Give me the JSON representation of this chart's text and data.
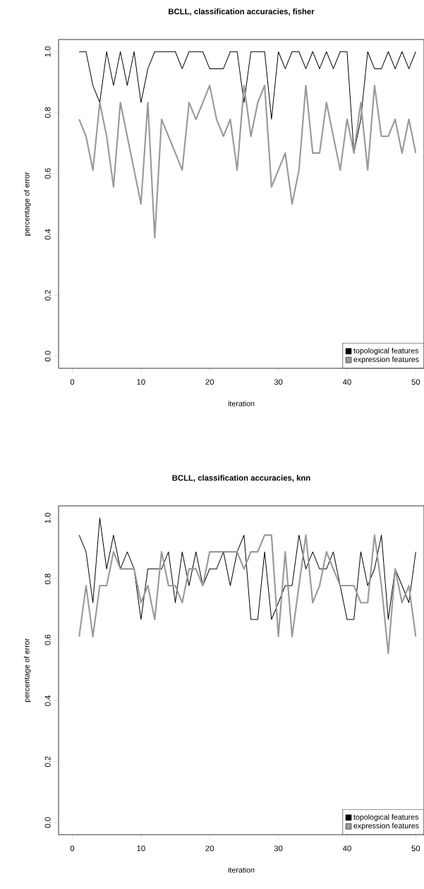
{
  "chart_data": [
    {
      "type": "line",
      "title": "BCLL, classification accuracies, fisher",
      "xlabel": "iteration",
      "ylabel": "percentage of error",
      "x": [
        1,
        2,
        3,
        4,
        5,
        6,
        7,
        8,
        9,
        10,
        11,
        12,
        13,
        14,
        15,
        16,
        17,
        18,
        19,
        20,
        21,
        22,
        23,
        24,
        25,
        26,
        27,
        28,
        29,
        30,
        31,
        32,
        33,
        34,
        35,
        36,
        37,
        38,
        39,
        40,
        41,
        42,
        43,
        44,
        45,
        46,
        47,
        48,
        49,
        50
      ],
      "series": [
        {
          "name": "topological features",
          "color": "#000000",
          "values": [
            1.0,
            1.0,
            0.889,
            0.833,
            1.0,
            0.889,
            1.0,
            0.889,
            1.0,
            0.833,
            0.944,
            1.0,
            1.0,
            1.0,
            1.0,
            0.944,
            1.0,
            1.0,
            1.0,
            0.944,
            0.944,
            0.944,
            1.0,
            1.0,
            0.833,
            1.0,
            1.0,
            1.0,
            0.778,
            1.0,
            0.944,
            1.0,
            1.0,
            0.944,
            1.0,
            0.944,
            1.0,
            0.944,
            1.0,
            1.0,
            0.667,
            0.778,
            1.0,
            0.944,
            0.944,
            1.0,
            0.944,
            1.0,
            0.944,
            1.0
          ]
        },
        {
          "name": "expression features",
          "color": "#999999",
          "values": [
            0.778,
            0.722,
            0.611,
            0.833,
            0.722,
            0.556,
            0.833,
            0.722,
            0.611,
            0.5,
            0.833,
            0.389,
            0.778,
            0.722,
            0.667,
            0.611,
            0.833,
            0.778,
            0.833,
            0.889,
            0.778,
            0.722,
            0.778,
            0.611,
            0.889,
            0.722,
            0.833,
            0.889,
            0.556,
            0.611,
            0.667,
            0.5,
            0.611,
            0.889,
            0.667,
            0.667,
            0.833,
            0.722,
            0.611,
            0.778,
            0.667,
            0.833,
            0.611,
            0.889,
            0.722,
            0.722,
            0.778,
            0.667,
            0.778,
            0.667
          ]
        }
      ],
      "xlim": [
        -2,
        51.2
      ],
      "ylim": [
        -0.04,
        1.04
      ],
      "xticks": [
        0,
        10,
        20,
        30,
        40,
        50
      ],
      "yticks": [
        {
          "value": 0,
          "label": "0.0"
        },
        {
          "value": 0.2,
          "label": "0.2"
        },
        {
          "value": 0.4,
          "label": "0.4"
        },
        {
          "value": 0.6,
          "label": "0.6"
        },
        {
          "value": 0.8,
          "label": "0.8"
        },
        {
          "value": 1,
          "label": "1.0"
        }
      ],
      "legend": "bottom right"
    },
    {
      "type": "line",
      "title": "BCLL, classification accuracies, knn",
      "xlabel": "iteration",
      "ylabel": "percentage of error",
      "x": [
        1,
        2,
        3,
        4,
        5,
        6,
        7,
        8,
        9,
        10,
        11,
        12,
        13,
        14,
        15,
        16,
        17,
        18,
        19,
        20,
        21,
        22,
        23,
        24,
        25,
        26,
        27,
        28,
        29,
        30,
        31,
        32,
        33,
        34,
        35,
        36,
        37,
        38,
        39,
        40,
        41,
        42,
        43,
        44,
        45,
        46,
        47,
        48,
        49,
        50
      ],
      "series": [
        {
          "name": "topological features",
          "color": "#000000",
          "values": [
            0.944,
            0.889,
            0.722,
            1.0,
            0.833,
            0.944,
            0.833,
            0.889,
            0.833,
            0.667,
            0.833,
            0.833,
            0.833,
            0.889,
            0.722,
            0.889,
            0.778,
            0.889,
            0.778,
            0.833,
            0.833,
            0.889,
            0.778,
            0.889,
            0.944,
            0.667,
            0.667,
            0.889,
            0.667,
            0.722,
            0.778,
            0.778,
            0.944,
            0.833,
            0.889,
            0.833,
            0.833,
            0.889,
            0.778,
            0.667,
            0.667,
            0.889,
            0.778,
            0.833,
            0.944,
            0.667,
            0.833,
            0.778,
            0.722,
            0.889
          ]
        },
        {
          "name": "expression features",
          "color": "#999999",
          "values": [
            0.611,
            0.778,
            0.611,
            0.778,
            0.778,
            0.889,
            0.833,
            0.833,
            0.833,
            0.722,
            0.778,
            0.667,
            0.889,
            0.778,
            0.778,
            0.722,
            0.833,
            0.833,
            0.778,
            0.889,
            0.889,
            0.889,
            0.889,
            0.889,
            0.833,
            0.889,
            0.889,
            0.944,
            0.944,
            0.611,
            0.889,
            0.611,
            0.778,
            0.944,
            0.722,
            0.778,
            0.889,
            0.833,
            0.778,
            0.778,
            0.778,
            0.722,
            0.722,
            0.944,
            0.778,
            0.556,
            0.833,
            0.722,
            0.778,
            0.611
          ]
        }
      ],
      "xlim": [
        -2,
        51.2
      ],
      "ylim": [
        -0.04,
        1.04
      ],
      "xticks": [
        0,
        10,
        20,
        30,
        40,
        50
      ],
      "yticks": [
        {
          "value": 0,
          "label": "0.0"
        },
        {
          "value": 0.2,
          "label": "0.2"
        },
        {
          "value": 0.4,
          "label": "0.4"
        },
        {
          "value": 0.6,
          "label": "0.6"
        },
        {
          "value": 0.8,
          "label": "0.8"
        },
        {
          "value": 1,
          "label": "1.0"
        }
      ],
      "legend": "bottom right"
    }
  ]
}
